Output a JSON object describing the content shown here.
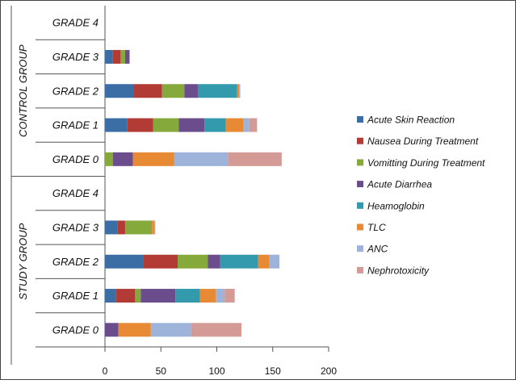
{
  "chart_data": {
    "type": "bar",
    "orientation": "horizontal",
    "stacked": true,
    "groups": [
      {
        "name": "CONTROL GROUP",
        "categories": [
          "GRADE 4",
          "GRADE 3",
          "GRADE 2",
          "GRADE 1",
          "GRADE 0"
        ]
      },
      {
        "name": "STUDY GROUP",
        "categories": [
          "GRADE 4",
          "GRADE 3",
          "GRADE 2",
          "GRADE 1",
          "GRADE 0"
        ]
      }
    ],
    "series": [
      {
        "name": "Acute Skin Reaction",
        "color": "#3b6ea5",
        "values": {
          "CONTROL GROUP": [
            0,
            7,
            26,
            20,
            0
          ],
          "STUDY GROUP": [
            0,
            11,
            34,
            10,
            0
          ]
        }
      },
      {
        "name": "Nausea During Treatment",
        "color": "#b23b35",
        "values": {
          "CONTROL GROUP": [
            0,
            7,
            25,
            23,
            0
          ],
          "STUDY GROUP": [
            0,
            7,
            31,
            17,
            0
          ]
        }
      },
      {
        "name": "Vomitting During Treatment",
        "color": "#86a93c",
        "values": {
          "CONTROL GROUP": [
            0,
            4,
            20,
            23,
            7
          ],
          "STUDY GROUP": [
            0,
            24,
            27,
            5,
            0
          ]
        }
      },
      {
        "name": "Acute Diarrhea",
        "color": "#6b4c8c",
        "values": {
          "CONTROL GROUP": [
            0,
            4,
            12,
            23,
            18
          ],
          "STUDY GROUP": [
            0,
            0,
            11,
            31,
            12
          ]
        }
      },
      {
        "name": "Heamoglobin",
        "color": "#3399ad",
        "values": {
          "CONTROL GROUP": [
            0,
            0,
            35,
            19,
            0
          ],
          "STUDY GROUP": [
            0,
            0,
            34,
            22,
            0
          ]
        }
      },
      {
        "name": "TLC",
        "color": "#e88a33",
        "values": {
          "CONTROL GROUP": [
            0,
            0,
            2,
            16,
            37
          ],
          "STUDY GROUP": [
            0,
            2,
            10,
            14,
            29
          ]
        }
      },
      {
        "name": "ANC",
        "color": "#9db3da",
        "values": {
          "CONTROL GROUP": [
            0,
            0,
            1,
            5,
            48
          ],
          "STUDY GROUP": [
            0,
            1,
            9,
            8,
            36
          ]
        }
      },
      {
        "name": "Nephrotoxicity",
        "color": "#d49a96",
        "values": {
          "CONTROL GROUP": [
            0,
            0,
            0,
            7,
            48
          ],
          "STUDY GROUP": [
            0,
            0,
            0,
            9,
            45
          ]
        }
      }
    ],
    "xlim": [
      0,
      200
    ],
    "xticks": [
      "0",
      "50",
      "100",
      "150",
      "200"
    ],
    "xlabel": "",
    "ylabel": "",
    "title": "",
    "grid": false,
    "legend_position": "right"
  }
}
